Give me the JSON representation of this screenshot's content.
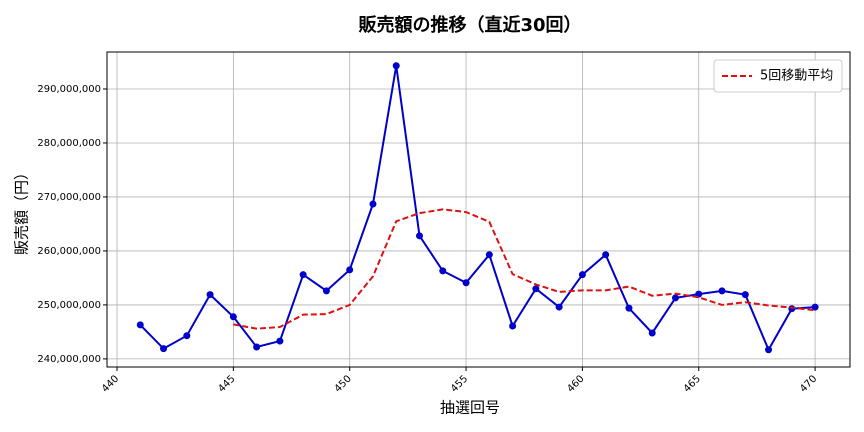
{
  "chart_data": {
    "type": "line",
    "title": "販売額の推移（直近30回）",
    "xlabel": "抽選回号",
    "ylabel": "販売額（円）",
    "x": [
      441,
      442,
      443,
      444,
      445,
      446,
      447,
      448,
      449,
      450,
      451,
      452,
      453,
      454,
      455,
      456,
      457,
      458,
      459,
      460,
      461,
      462,
      463,
      464,
      465,
      466,
      467,
      468,
      469,
      470
    ],
    "series": [
      {
        "color": "#0000cc",
        "marker": true,
        "dashed": false,
        "values": [
          246300000,
          241900000,
          244300000,
          251900000,
          247800000,
          242200000,
          243300000,
          255600000,
          252600000,
          256500000,
          268700000,
          294300000,
          262800000,
          256300000,
          254100000,
          259300000,
          246100000,
          253000000,
          249600000,
          255600000,
          259300000,
          249400000,
          244800000,
          251300000,
          252000000,
          252600000,
          251900000,
          241700000,
          249300000,
          249600000
        ]
      },
      {
        "name": "5回移動平均",
        "color": "#dd1111",
        "marker": false,
        "dashed": true,
        "values": [
          null,
          null,
          null,
          null,
          246400000,
          245600000,
          245900000,
          248200000,
          248300000,
          250000000,
          255300000,
          265500000,
          267000000,
          267700000,
          267200000,
          265400000,
          255700000,
          253800000,
          252400000,
          252700000,
          252700000,
          253400000,
          251700000,
          252100000,
          251400000,
          250000000,
          250500000,
          249900000,
          249500000,
          249000000
        ]
      }
    ],
    "xlim": [
      439.57,
      471.5
    ],
    "ylim": [
      238500000,
      296850000
    ],
    "xticks": [
      440,
      445,
      450,
      455,
      460,
      465,
      470
    ],
    "yticks": [
      {
        "value": 240000000,
        "label": "240,000,000"
      },
      {
        "value": 250000000,
        "label": "250,000,000"
      },
      {
        "value": 260000000,
        "label": "260,000,000"
      },
      {
        "value": 270000000,
        "label": "270,000,000"
      },
      {
        "value": 280000000,
        "label": "280,000,000"
      },
      {
        "value": 290000000,
        "label": "290,000,000"
      }
    ],
    "grid": true,
    "legend": "upper right"
  }
}
